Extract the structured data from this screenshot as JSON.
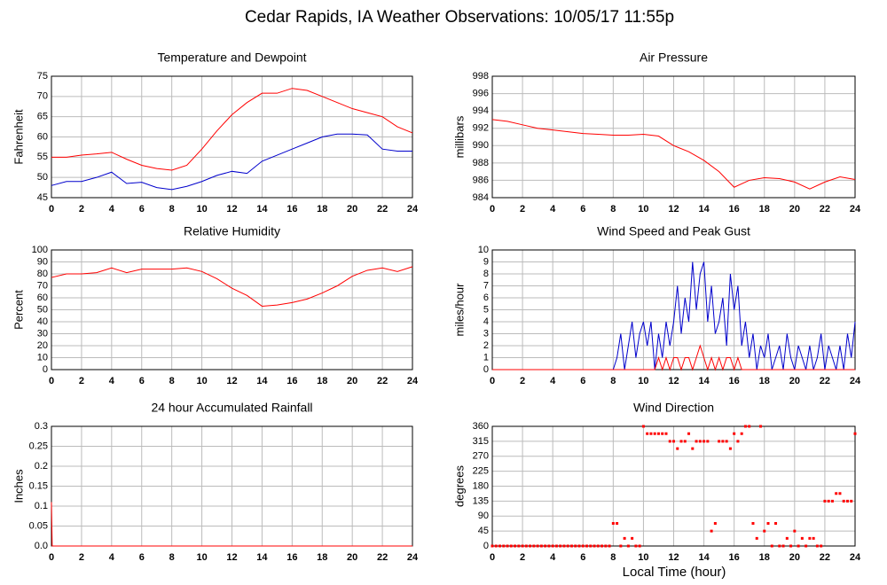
{
  "title": "Cedar Rapids, IA Weather Observations: 10/05/17 11:55p",
  "xlabel": "Local Time (hour)",
  "chart_data": [
    {
      "type": "line",
      "title": "Temperature and Dewpoint",
      "ylabel": "Fahrenheit",
      "xlim": [
        0,
        24
      ],
      "xticks": [
        0,
        2,
        4,
        6,
        8,
        10,
        12,
        14,
        16,
        18,
        20,
        22,
        24
      ],
      "ylim": [
        45,
        75
      ],
      "yticks": [
        45,
        50,
        55,
        60,
        65,
        70,
        75
      ],
      "grid": true,
      "x": [
        0,
        1,
        2,
        3,
        4,
        5,
        6,
        7,
        8,
        9,
        10,
        11,
        12,
        13,
        14,
        15,
        16,
        17,
        18,
        19,
        20,
        21,
        22,
        23,
        24
      ],
      "series": [
        {
          "color": "#ff0000",
          "values": [
            55,
            55,
            55.5,
            55.8,
            56.2,
            54.5,
            53,
            52.2,
            51.8,
            53,
            57,
            61.5,
            65.5,
            68.5,
            70.8,
            70.8,
            72,
            71.5,
            70,
            68.5,
            67,
            66,
            65,
            62.5,
            61
          ]
        },
        {
          "color": "#0000cc",
          "values": [
            48,
            49,
            49,
            50,
            51.3,
            48.5,
            48.8,
            47.5,
            47,
            47.8,
            49,
            50.5,
            51.5,
            51,
            54,
            55.5,
            57,
            58.5,
            60,
            60.7,
            60.7,
            60.5,
            57,
            56.5,
            56.5
          ]
        }
      ]
    },
    {
      "type": "line",
      "title": "Air Pressure",
      "ylabel": "millibars",
      "xlim": [
        0,
        24
      ],
      "xticks": [
        0,
        2,
        4,
        6,
        8,
        10,
        12,
        14,
        16,
        18,
        20,
        22,
        24
      ],
      "ylim": [
        984,
        998
      ],
      "yticks": [
        984,
        986,
        988,
        990,
        992,
        994,
        996,
        998
      ],
      "grid": true,
      "x": [
        0,
        1,
        2,
        3,
        4,
        5,
        6,
        7,
        8,
        9,
        10,
        11,
        12,
        13,
        14,
        15,
        16,
        17,
        18,
        19,
        20,
        21,
        22,
        23,
        24
      ],
      "series": [
        {
          "color": "#ff0000",
          "values": [
            993,
            992.8,
            992.4,
            992,
            991.8,
            991.6,
            991.4,
            991.3,
            991.2,
            991.2,
            991.3,
            991.1,
            990,
            989.3,
            988.3,
            987,
            985.2,
            986,
            986.3,
            986.2,
            985.8,
            985,
            985.8,
            986.4,
            986.1
          ]
        }
      ]
    },
    {
      "type": "line",
      "title": "Relative Humidity",
      "ylabel": "Percent",
      "xlim": [
        0,
        24
      ],
      "xticks": [
        0,
        2,
        4,
        6,
        8,
        10,
        12,
        14,
        16,
        18,
        20,
        22,
        24
      ],
      "ylim": [
        0,
        100
      ],
      "yticks": [
        0,
        10,
        20,
        30,
        40,
        50,
        60,
        70,
        80,
        90,
        100
      ],
      "grid": true,
      "x": [
        0,
        1,
        2,
        3,
        4,
        5,
        6,
        7,
        8,
        9,
        10,
        11,
        12,
        13,
        14,
        15,
        16,
        17,
        18,
        19,
        20,
        21,
        22,
        23,
        24
      ],
      "series": [
        {
          "color": "#ff0000",
          "values": [
            77,
            80,
            80,
            81,
            85,
            81,
            84,
            84,
            84,
            85,
            82,
            76,
            68,
            62,
            53,
            54,
            56,
            59,
            64,
            70,
            78,
            83,
            85,
            82,
            86
          ]
        }
      ]
    },
    {
      "type": "line",
      "title": "Wind Speed and Peak Gust",
      "ylabel": "miles/hour",
      "xlim": [
        0,
        24
      ],
      "xticks": [
        0,
        2,
        4,
        6,
        8,
        10,
        12,
        14,
        16,
        18,
        20,
        22,
        24
      ],
      "ylim": [
        0,
        10
      ],
      "yticks": [
        0,
        1,
        2,
        3,
        4,
        5,
        6,
        7,
        8,
        9,
        10
      ],
      "grid": true,
      "x": [
        0,
        0.25,
        0.5,
        0.75,
        1,
        1.25,
        1.5,
        1.75,
        2,
        2.25,
        2.5,
        2.75,
        3,
        3.25,
        3.5,
        3.75,
        4,
        4.25,
        4.5,
        4.75,
        5,
        5.25,
        5.5,
        5.75,
        6,
        6.25,
        6.5,
        6.75,
        7,
        7.25,
        7.5,
        7.75,
        8,
        8.25,
        8.5,
        8.75,
        9,
        9.25,
        9.5,
        9.75,
        10,
        10.25,
        10.5,
        10.75,
        11,
        11.25,
        11.5,
        11.75,
        12,
        12.25,
        12.5,
        12.75,
        13,
        13.25,
        13.5,
        13.75,
        14,
        14.25,
        14.5,
        14.75,
        15,
        15.25,
        15.5,
        15.75,
        16,
        16.25,
        16.5,
        16.75,
        17,
        17.25,
        17.5,
        17.75,
        18,
        18.25,
        18.5,
        18.75,
        19,
        19.25,
        19.5,
        19.75,
        20,
        20.25,
        20.5,
        20.75,
        21,
        21.25,
        21.5,
        21.75,
        22,
        22.25,
        22.5,
        22.75,
        23,
        23.25,
        23.5,
        23.75,
        24
      ],
      "series": [
        {
          "color": "#0000cc",
          "values": [
            0,
            0,
            0,
            0,
            0,
            0,
            0,
            0,
            0,
            0,
            0,
            0,
            0,
            0,
            0,
            0,
            0,
            0,
            0,
            0,
            0,
            0,
            0,
            0,
            0,
            0,
            0,
            0,
            0,
            0,
            0,
            0,
            0,
            1,
            3,
            0,
            2,
            4,
            1,
            3,
            4,
            2,
            4,
            0,
            3,
            1,
            4,
            2,
            4,
            7,
            3,
            6,
            4,
            9,
            5,
            8,
            9,
            4,
            7,
            3,
            4,
            6,
            2,
            8,
            5,
            7,
            2,
            4,
            1,
            3,
            0,
            2,
            1,
            3,
            0,
            1,
            2,
            0,
            3,
            1,
            0,
            2,
            1,
            0,
            2,
            0,
            1,
            3,
            0,
            2,
            1,
            0,
            2,
            0,
            3,
            1,
            4
          ]
        },
        {
          "color": "#ff0000",
          "values": [
            0,
            0,
            0,
            0,
            0,
            0,
            0,
            0,
            0,
            0,
            0,
            0,
            0,
            0,
            0,
            0,
            0,
            0,
            0,
            0,
            0,
            0,
            0,
            0,
            0,
            0,
            0,
            0,
            0,
            0,
            0,
            0,
            0,
            0,
            0,
            0,
            0,
            0,
            0,
            0,
            0,
            0,
            0,
            0,
            1,
            0,
            1,
            0,
            1,
            1,
            0,
            1,
            1,
            0,
            1,
            2,
            1,
            0,
            1,
            0,
            1,
            0,
            1,
            1,
            0,
            1,
            0,
            0,
            0,
            0,
            0,
            0,
            0,
            0,
            0,
            0,
            0,
            0,
            0,
            0,
            0,
            0,
            0,
            0,
            0,
            0,
            0,
            0,
            0,
            0,
            0,
            0,
            0,
            0,
            0,
            0,
            0
          ]
        }
      ]
    },
    {
      "type": "line",
      "title": "24 hour Accumulated Rainfall",
      "ylabel": "Inches",
      "xlim": [
        0,
        24
      ],
      "xticks": [
        0,
        2,
        4,
        6,
        8,
        10,
        12,
        14,
        16,
        18,
        20,
        22,
        24
      ],
      "ylim": [
        0,
        0.3
      ],
      "yticks": [
        {
          "value": 0,
          "label": "0.0"
        },
        0.05,
        0.1,
        0.15,
        0.2,
        0.25,
        0.3
      ],
      "grid": true,
      "x": [
        0,
        0.05,
        24
      ],
      "series": [
        {
          "color": "#ff0000",
          "values": [
            0.11,
            0,
            0
          ]
        }
      ]
    },
    {
      "type": "scatter",
      "title": "Wind Direction",
      "ylabel": "degrees",
      "xlim": [
        0,
        24
      ],
      "xticks": [
        0,
        2,
        4,
        6,
        8,
        10,
        12,
        14,
        16,
        18,
        20,
        22,
        24
      ],
      "ylim": [
        0,
        360
      ],
      "yticks": [
        0,
        45,
        90,
        135,
        180,
        225,
        270,
        315,
        360
      ],
      "grid": true,
      "x": [
        0,
        0.25,
        0.5,
        0.75,
        1,
        1.25,
        1.5,
        1.75,
        2,
        2.25,
        2.5,
        2.75,
        3,
        3.25,
        3.5,
        3.75,
        4,
        4.25,
        4.5,
        4.75,
        5,
        5.25,
        5.5,
        5.75,
        6,
        6.25,
        6.5,
        6.75,
        7,
        7.25,
        7.5,
        7.75,
        8,
        8.25,
        8.5,
        8.75,
        9,
        9.25,
        9.5,
        9.75,
        10,
        10.25,
        10.5,
        10.75,
        11,
        11.25,
        11.5,
        11.75,
        12,
        12.25,
        12.5,
        12.75,
        13,
        13.25,
        13.5,
        13.75,
        14,
        14.25,
        14.5,
        14.75,
        15,
        15.25,
        15.5,
        15.75,
        16,
        16.25,
        16.5,
        16.75,
        17,
        17.25,
        17.5,
        17.75,
        18,
        18.25,
        18.5,
        18.75,
        19,
        19.25,
        19.5,
        19.75,
        20,
        20.25,
        20.5,
        20.75,
        21,
        21.25,
        21.5,
        21.75,
        22,
        22.25,
        22.5,
        22.75,
        23,
        23.25,
        23.5,
        23.75,
        24
      ],
      "series": [
        {
          "color": "#ff0000",
          "values": [
            0,
            0,
            0,
            0,
            0,
            0,
            0,
            0,
            0,
            0,
            0,
            0,
            0,
            0,
            0,
            0,
            0,
            0,
            0,
            0,
            0,
            0,
            0,
            0,
            0,
            0,
            0,
            0,
            0,
            0,
            0,
            0,
            68,
            68,
            0,
            23,
            0,
            23,
            0,
            0,
            360,
            338,
            338,
            338,
            338,
            338,
            338,
            315,
            315,
            293,
            315,
            315,
            338,
            293,
            315,
            315,
            315,
            315,
            45,
            68,
            315,
            315,
            315,
            293,
            338,
            315,
            338,
            360,
            360,
            68,
            23,
            360,
            45,
            68,
            0,
            68,
            0,
            0,
            23,
            0,
            45,
            0,
            23,
            0,
            23,
            23,
            0,
            0,
            135,
            135,
            135,
            158,
            158,
            135,
            135,
            135,
            338
          ]
        }
      ]
    }
  ]
}
